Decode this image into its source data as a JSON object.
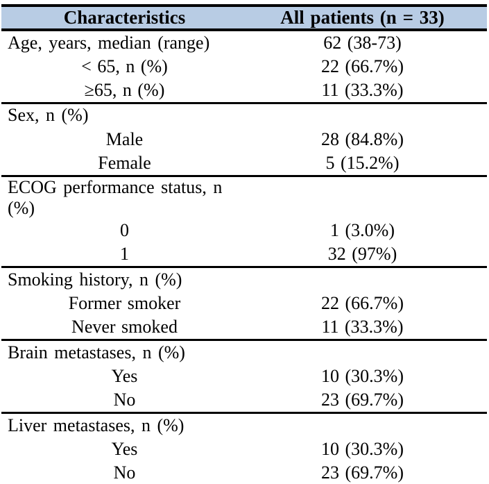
{
  "colors": {
    "header_bg": "#b8cce4",
    "rule": "#000000",
    "text": "#000000"
  },
  "table": {
    "header": {
      "characteristics": "Characteristics",
      "all_patients": "All patients (n = 33)"
    },
    "sections": [
      {
        "label": "Age, years, median (range)",
        "value": "62 (38-73)",
        "rows": [
          {
            "label": "< 65, n (%)",
            "value": "22 (66.7%)"
          },
          {
            "label": "≥65, n (%)",
            "value": "11 (33.3%)"
          }
        ]
      },
      {
        "label": "Sex, n (%)",
        "value": "",
        "rows": [
          {
            "label": "Male",
            "value": "28 (84.8%)"
          },
          {
            "label": "Female",
            "value": "5 (15.2%)"
          }
        ]
      },
      {
        "label": "ECOG performance status, n (%)",
        "value": "",
        "rows": [
          {
            "label": "0",
            "value": "1 (3.0%)"
          },
          {
            "label": "1",
            "value": "32 (97%)"
          }
        ]
      },
      {
        "label": "Smoking history, n (%)",
        "value": "",
        "rows": [
          {
            "label": "Former smoker",
            "value": "22 (66.7%)"
          },
          {
            "label": "Never smoked",
            "value": "11 (33.3%)"
          }
        ]
      },
      {
        "label": "Brain metastases, n (%)",
        "value": "",
        "rows": [
          {
            "label": "Yes",
            "value": "10 (30.3%)"
          },
          {
            "label": "No",
            "value": "23 (69.7%)"
          }
        ]
      },
      {
        "label": "Liver metastases, n (%)",
        "value": "",
        "rows": [
          {
            "label": "Yes",
            "value": "10 (30.3%)"
          },
          {
            "label": "No",
            "value": "23 (69.7%)"
          }
        ]
      }
    ]
  }
}
